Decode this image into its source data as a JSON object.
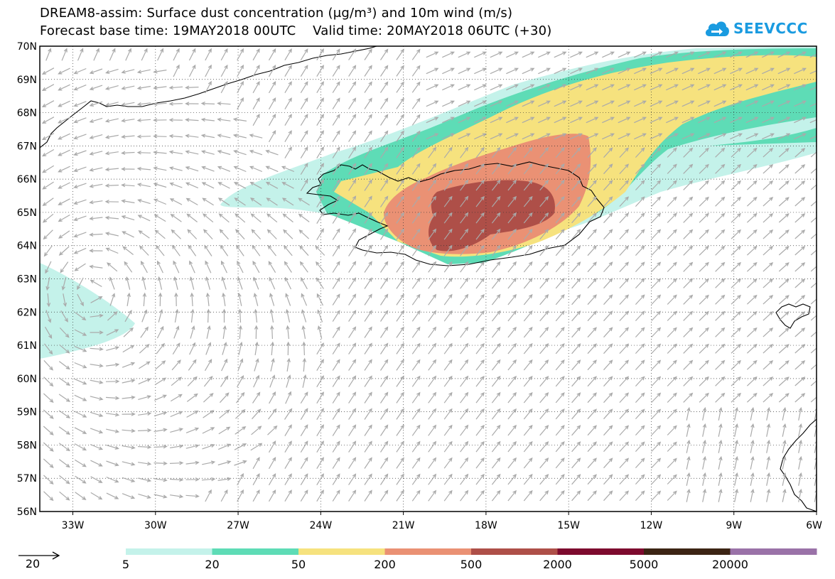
{
  "header": {
    "title_line1": "DREAM8-assim: Surface dust concentration (μg/m³) and 10m wind (m/s)",
    "title_line2": "Forecast base time: 19MAY2018 00UTC    Valid time: 20MAY2018 06UTC (+30)"
  },
  "logo": {
    "text": "SEEVCCC",
    "icon": "cloud-arrow-icon",
    "color": "#1a9be0"
  },
  "map": {
    "lat_labels": [
      "70N",
      "69N",
      "68N",
      "67N",
      "66N",
      "65N",
      "64N",
      "63N",
      "62N",
      "61N",
      "60N",
      "59N",
      "58N",
      "57N",
      "56N"
    ],
    "lon_labels": [
      "33W",
      "30W",
      "27W",
      "24W",
      "21W",
      "18W",
      "15W",
      "12W",
      "9W",
      "6W"
    ],
    "lat_range": [
      56,
      70
    ],
    "lon_range": [
      -34.2,
      -6
    ],
    "grid": "dotted"
  },
  "legend": {
    "wind_reference": "20",
    "levels": [
      "5",
      "20",
      "50",
      "200",
      "500",
      "2000",
      "5000",
      "20000"
    ],
    "colors": [
      "#c4f2ea",
      "#5edcb6",
      "#f6e27e",
      "#ea9174",
      "#ae4f48",
      "#7d0a2e",
      "#3c2414",
      "#9a72a8"
    ]
  },
  "colors": {
    "coast": "#000000",
    "wind_arrow": "#aaaaaa"
  }
}
